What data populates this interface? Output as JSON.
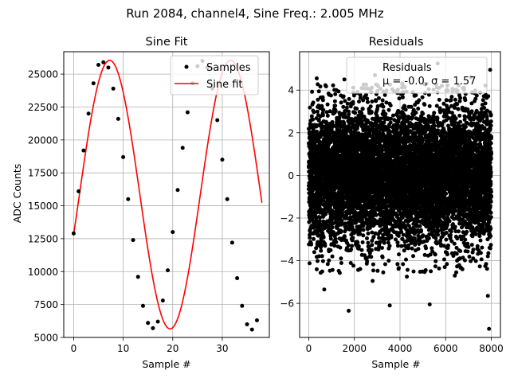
{
  "figure": {
    "suptitle": "Run 2084, channel4, Sine Freq.: 2.005 MHz"
  },
  "chart_data": [
    {
      "type": "line",
      "title": "Sine Fit",
      "xlabel": "Sample #",
      "ylabel": "ADC Counts",
      "xlim": [
        -2,
        39.5
      ],
      "ylim": [
        5000,
        26700
      ],
      "xticks": [
        0,
        10,
        20,
        30
      ],
      "xtick_labels": [
        "0",
        "10",
        "20",
        "30"
      ],
      "yticks": [
        5000,
        7500,
        10000,
        12500,
        15000,
        17500,
        20000,
        22500,
        25000
      ],
      "ytick_labels": [
        "5000",
        "7500",
        "10000",
        "12500",
        "15000",
        "17500",
        "20000",
        "22500",
        "25000"
      ],
      "grid": true,
      "legend": {
        "placement": "top-right",
        "entries": [
          "Samples",
          "Sine fit"
        ]
      },
      "series": [
        {
          "name": "Samples",
          "kind": "scatter",
          "color": "#000000",
          "x": [
            0,
            1,
            2,
            3,
            4,
            5,
            6,
            7,
            8,
            9,
            10,
            11,
            12,
            13,
            14,
            15,
            16,
            17,
            18,
            19,
            20,
            21,
            22,
            23,
            24,
            25,
            26,
            27,
            28,
            29,
            30,
            31,
            32,
            33,
            34,
            35,
            36,
            37
          ],
          "y": [
            12900,
            16100,
            19200,
            22000,
            24300,
            25700,
            25900,
            25500,
            23900,
            21600,
            18700,
            15500,
            12400,
            9600,
            7400,
            6100,
            5700,
            6200,
            7800,
            10100,
            13000,
            16200,
            19400,
            22100,
            24300,
            25600,
            26000,
            25500,
            23900,
            21500,
            18500,
            15500,
            12200,
            9500,
            7400,
            6000,
            5600,
            6300
          ]
        },
        {
          "name": "Sine fit",
          "kind": "line",
          "color": "#ff0000",
          "fit": {
            "offset": 15850,
            "amplitude": 10200,
            "period": 24.4,
            "phase": -0.3,
            "x_range": [
              0,
              38
            ]
          }
        }
      ]
    },
    {
      "type": "scatter",
      "title": "Residuals",
      "xlabel": "Sample #",
      "ylabel": "",
      "xlim": [
        -400,
        8400
      ],
      "ylim": [
        -7.6,
        5.8
      ],
      "xticks": [
        0,
        2000,
        4000,
        6000,
        8000
      ],
      "xtick_labels": [
        "0",
        "2000",
        "4000",
        "6000",
        "8000"
      ],
      "yticks": [
        -6,
        -4,
        -2,
        0,
        2,
        4
      ],
      "ytick_labels": [
        "−6",
        "−4",
        "−2",
        "0",
        "2",
        "4"
      ],
      "grid": true,
      "legend": {
        "placement": "top-right",
        "entries": [
          "Residuals",
          "μ = -0.0, σ = 1.57"
        ]
      },
      "series": [
        {
          "name": "Residuals",
          "color": "#000000",
          "distribution": {
            "count": 8000,
            "x_range": [
              0,
              8000
            ],
            "mean": -0.0,
            "std": 1.57
          },
          "outliers": [
            [
              1750,
              -6.35
            ],
            [
              3550,
              -6.1
            ],
            [
              5300,
              -6.05
            ],
            [
              7900,
              -7.2
            ],
            [
              7850,
              -5.65
            ],
            [
              680,
              -5.35
            ],
            [
              2800,
              -4.95
            ],
            [
              4300,
              -4.75
            ],
            [
              6400,
              -4.7
            ],
            [
              350,
              4.55
            ],
            [
              1560,
              4.5
            ],
            [
              2900,
              4.7
            ],
            [
              5650,
              5.25
            ],
            [
              7950,
              4.95
            ],
            [
              7100,
              4.6
            ],
            [
              4100,
              4.3
            ]
          ]
        }
      ]
    }
  ]
}
